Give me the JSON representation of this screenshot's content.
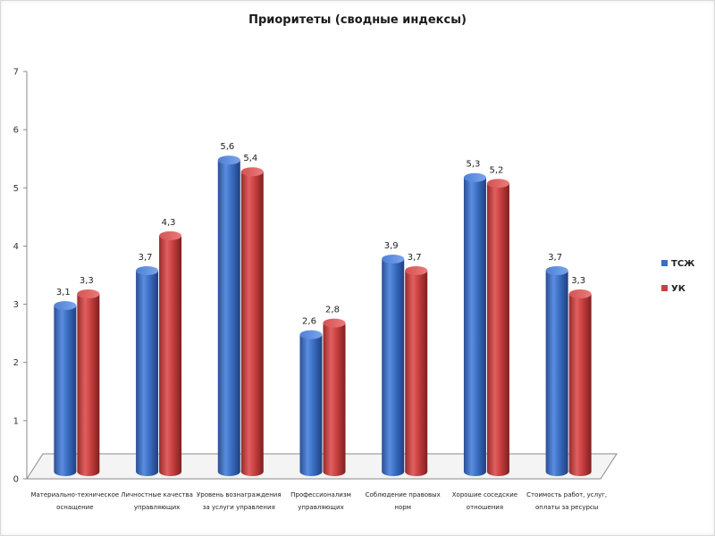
{
  "chart_data": {
    "type": "bar",
    "title": "Приоритеты (сводные индексы)",
    "xlabel": "",
    "ylabel": "",
    "ylim": [
      0,
      7
    ],
    "yticks": [
      0,
      1,
      2,
      3,
      4,
      5,
      6,
      7
    ],
    "grid": false,
    "legend_position": "right",
    "categories": [
      [
        "Материально-техническое",
        "оснащение"
      ],
      [
        "Личностные качества",
        "управляющих"
      ],
      [
        "Уровень вознаграждения",
        "за услуги управления"
      ],
      [
        "Профессионализм",
        "управляющих"
      ],
      [
        "Соблюдение правовых",
        "норм"
      ],
      [
        "Хорошие соседские",
        "отношения"
      ],
      [
        "Стоимость работ, услуг,",
        "оплаты за ресурсы"
      ]
    ],
    "series": [
      {
        "name": "ТСЖ",
        "color": "#3a6fc4",
        "values": [
          3.1,
          3.7,
          5.6,
          2.6,
          3.9,
          5.3,
          3.7
        ],
        "labels": [
          "3,1",
          "3,7",
          "5,6",
          "2,6",
          "3,9",
          "5,3",
          "3,7"
        ]
      },
      {
        "name": "УК",
        "color": "#c94040",
        "values": [
          3.3,
          4.3,
          5.4,
          2.8,
          3.7,
          5.2,
          3.3
        ],
        "labels": [
          "3,3",
          "4,3",
          "5,4",
          "2,8",
          "3,7",
          "5,2",
          "3,3"
        ]
      }
    ]
  }
}
